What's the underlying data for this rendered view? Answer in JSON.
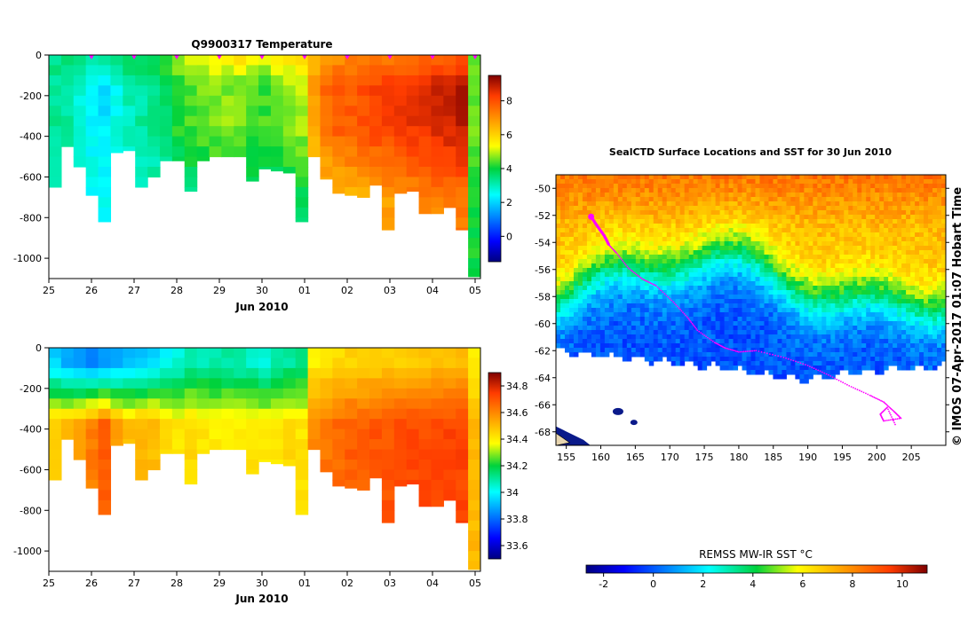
{
  "chart_data": [
    {
      "type": "heatmap",
      "title": "Q9900317  Temperature",
      "xlabel": "Jun 2010",
      "ylabel": "",
      "x_ticks": [
        "25",
        "26",
        "27",
        "28",
        "29",
        "30",
        "01",
        "02",
        "03",
        "04",
        "05"
      ],
      "y_ticks": [
        0,
        -200,
        -400,
        -600,
        -800,
        -1000
      ],
      "ylim": [
        -1100,
        0
      ],
      "colorbar_ticks": [
        8,
        6,
        4,
        2,
        0
      ],
      "colorbar_range": [
        -1.5,
        9.5
      ],
      "profile_depths": [
        -650,
        -450,
        -550,
        -690,
        -820,
        -480,
        -470,
        -650,
        -600,
        -520,
        -520,
        -670,
        -520,
        -500,
        -500,
        -500,
        -620,
        -560,
        -570,
        -580,
        -820,
        -500,
        -610,
        -680,
        -690,
        -700,
        -640,
        -860,
        -680,
        -670,
        -780,
        -780,
        -750,
        -860,
        -1090
      ],
      "surface_temp": [
        3.5,
        3.8,
        3.4,
        3.1,
        3.2,
        3.6,
        3.8,
        3.8,
        4.0,
        4.4,
        5.0,
        5.2,
        5.4,
        5.5,
        5.5,
        5.8,
        5.6,
        5.4,
        5.6,
        5.8,
        5.9,
        6.5,
        6.8,
        7.0,
        7.1,
        7.2,
        7.3,
        7.3,
        7.4,
        7.4,
        7.5,
        7.6,
        7.7,
        7.8,
        4.5
      ],
      "mid_temp": [
        3.3,
        3.2,
        2.8,
        2.4,
        2.2,
        2.6,
        3.0,
        3.2,
        3.3,
        3.6,
        4.2,
        4.3,
        4.5,
        4.6,
        4.7,
        4.6,
        4.4,
        4.3,
        4.5,
        4.7,
        4.9,
        6.8,
        7.6,
        7.8,
        7.8,
        8.0,
        8.2,
        8.3,
        8.4,
        8.5,
        8.6,
        8.7,
        8.8,
        9.0,
        4.5
      ],
      "deep_temp": [
        3.2,
        3.0,
        2.8,
        2.6,
        2.5,
        2.6,
        2.8,
        2.9,
        3.0,
        3.2,
        3.3,
        3.4,
        3.5,
        3.5,
        3.6,
        3.5,
        3.4,
        3.3,
        3.4,
        3.5,
        3.6,
        5.2,
        6.0,
        6.2,
        6.3,
        6.4,
        6.6,
        6.7,
        6.8,
        6.9,
        7.0,
        7.1,
        7.2,
        7.3,
        4.0
      ],
      "surface_markers_x": [
        "26",
        "27",
        "28",
        "29",
        "30",
        "01",
        "02",
        "03",
        "04",
        "05"
      ]
    },
    {
      "type": "heatmap",
      "title": "",
      "xlabel": "Jun 2010",
      "ylabel": "",
      "x_ticks": [
        "25",
        "26",
        "27",
        "28",
        "29",
        "30",
        "01",
        "02",
        "03",
        "04",
        "05"
      ],
      "y_ticks": [
        0,
        -200,
        -400,
        -600,
        -800,
        -1000
      ],
      "ylim": [
        -1100,
        0
      ],
      "colorbar_ticks": [
        "34.8",
        "34.6",
        "34.4",
        "34.2",
        "34",
        "33.8",
        "33.6"
      ],
      "colorbar_range": [
        33.5,
        34.9
      ],
      "profile_depths": [
        -650,
        -450,
        -550,
        -690,
        -820,
        -480,
        -470,
        -650,
        -600,
        -520,
        -520,
        -670,
        -520,
        -500,
        -500,
        -500,
        -620,
        -560,
        -570,
        -580,
        -820,
        -500,
        -610,
        -680,
        -690,
        -700,
        -640,
        -860,
        -680,
        -670,
        -780,
        -780,
        -750,
        -860,
        -1090
      ],
      "surface_salinity": [
        33.95,
        33.9,
        33.85,
        33.82,
        33.85,
        33.88,
        33.9,
        33.92,
        33.95,
        34.0,
        34.05,
        34.08,
        34.08,
        34.08,
        34.1,
        34.08,
        34.06,
        34.05,
        34.08,
        34.1,
        34.12,
        34.4,
        34.42,
        34.44,
        34.45,
        34.46,
        34.46,
        34.47,
        34.47,
        34.48,
        34.48,
        34.49,
        34.5,
        34.5,
        34.4
      ],
      "deep_salinity": [
        34.48,
        34.5,
        34.55,
        34.62,
        34.68,
        34.55,
        34.5,
        34.52,
        34.5,
        34.45,
        34.42,
        34.44,
        34.42,
        34.4,
        34.4,
        34.4,
        34.42,
        34.4,
        34.42,
        34.44,
        34.42,
        34.6,
        34.64,
        34.66,
        34.68,
        34.68,
        34.7,
        34.7,
        34.72,
        34.72,
        34.72,
        34.72,
        34.73,
        34.73,
        34.5
      ]
    },
    {
      "type": "heatmap",
      "title": "SealCTD Surface Locations and SST for 30 Jun 2010",
      "xlabel": "",
      "ylabel": "",
      "x_ticks": [
        155,
        160,
        165,
        170,
        175,
        180,
        185,
        190,
        195,
        200,
        205
      ],
      "y_ticks": [
        -50,
        -52,
        -54,
        -56,
        -58,
        -60,
        -62,
        -64,
        -66,
        -68
      ],
      "xlim": [
        153.5,
        210
      ],
      "ylim": [
        -69,
        -49
      ],
      "colorbar_label": "REMSS MW-IR SST °C",
      "colorbar_ticks": [
        -2,
        0,
        2,
        4,
        6,
        8,
        10
      ],
      "colorbar_range": [
        -2.7,
        11
      ],
      "track_start": [
        158.6,
        -52.1
      ],
      "track_points": [
        [
          158.6,
          -52.1
        ],
        [
          159.5,
          -52.8
        ],
        [
          160.5,
          -53.5
        ],
        [
          161.2,
          -54.2
        ],
        [
          162.3,
          -54.8
        ],
        [
          164.0,
          -55.9
        ],
        [
          166.0,
          -56.7
        ],
        [
          168.0,
          -57.2
        ],
        [
          170.5,
          -58.4
        ],
        [
          172.5,
          -59.5
        ],
        [
          174.0,
          -60.5
        ],
        [
          176.5,
          -61.4
        ],
        [
          178.0,
          -61.8
        ],
        [
          180.0,
          -62.1
        ],
        [
          182.5,
          -62.0
        ],
        [
          186.5,
          -62.5
        ],
        [
          190.0,
          -63.1
        ],
        [
          193.0,
          -63.8
        ],
        [
          196.0,
          -64.6
        ],
        [
          199.0,
          -65.3
        ],
        [
          201.0,
          -65.8
        ],
        [
          202.5,
          -66.5
        ],
        [
          203.5,
          -67.0
        ],
        [
          201.0,
          -67.2
        ],
        [
          200.5,
          -66.7
        ],
        [
          201.5,
          -66.2
        ],
        [
          202.8,
          -67.6
        ]
      ]
    }
  ],
  "credit": "© IMOS 07-Apr-2017 01:07 Hobart Time",
  "colors": {
    "track": "#ff00ff",
    "ice": "#ffffff",
    "land": "#000000"
  }
}
